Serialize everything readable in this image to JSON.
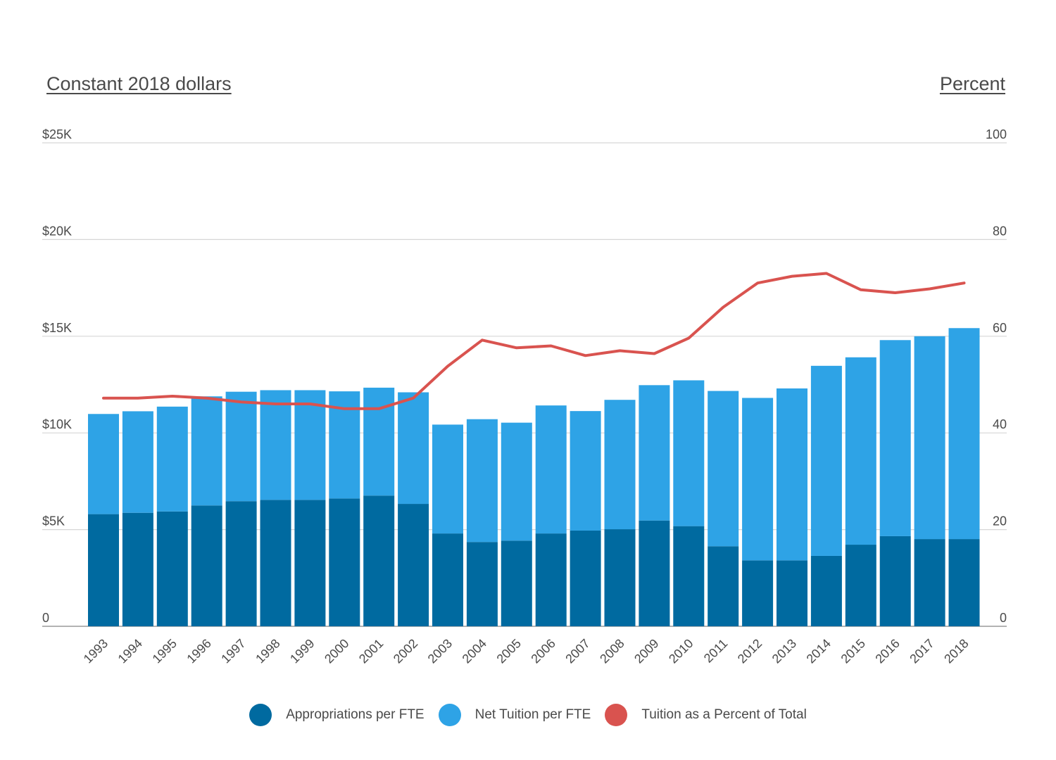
{
  "chart_data": {
    "type": "bar",
    "stacked": true,
    "left_axis_title": "Constant 2018 dollars",
    "right_axis_title": "Percent",
    "left_ticks": [
      "0",
      "$5K",
      "$10K",
      "$15K",
      "$20K",
      "$25K"
    ],
    "right_ticks": [
      "0",
      "20",
      "40",
      "60",
      "80",
      "100"
    ],
    "left_ylim": [
      0,
      25000
    ],
    "right_ylim": [
      0,
      100
    ],
    "grid": true,
    "legend_position": "bottom",
    "categories": [
      "1993",
      "1994",
      "1995",
      "1996",
      "1997",
      "1998",
      "1999",
      "2000",
      "2001",
      "2002",
      "2003",
      "2004",
      "2005",
      "2006",
      "2007",
      "2008",
      "2009",
      "2010",
      "2011",
      "2012",
      "2013",
      "2014",
      "2015",
      "2016",
      "2017",
      "2018"
    ],
    "series": [
      {
        "name": "Appropriations per FTE",
        "type": "bar",
        "axis": "left",
        "color": "#006aa0",
        "values": [
          5800,
          5870,
          5940,
          6250,
          6470,
          6540,
          6540,
          6610,
          6760,
          6330,
          4800,
          4360,
          4430,
          4800,
          4950,
          5020,
          5470,
          5180,
          4140,
          3410,
          3410,
          3640,
          4220,
          4660,
          4510,
          4510
        ]
      },
      {
        "name": "Net Tuition per FTE",
        "type": "bar",
        "axis": "left",
        "color": "#2ea3e6",
        "values": [
          5180,
          5250,
          5420,
          5640,
          5660,
          5670,
          5670,
          5540,
          5580,
          5770,
          5630,
          6350,
          6100,
          6620,
          6180,
          6690,
          7000,
          7540,
          8030,
          8400,
          8890,
          9830,
          9690,
          10140,
          10490,
          10910
        ]
      },
      {
        "name": "Tuition as a Percent of Total",
        "type": "line",
        "axis": "right",
        "color": "#d9534f",
        "values": [
          47.2,
          47.2,
          47.6,
          47.2,
          46.4,
          46.0,
          46.0,
          45.0,
          45.0,
          47.2,
          53.8,
          59.2,
          57.6,
          58.0,
          56.0,
          57.0,
          56.4,
          59.6,
          66.0,
          71.0,
          72.4,
          73.0,
          69.6,
          69.0,
          69.8,
          71.0
        ]
      }
    ]
  }
}
